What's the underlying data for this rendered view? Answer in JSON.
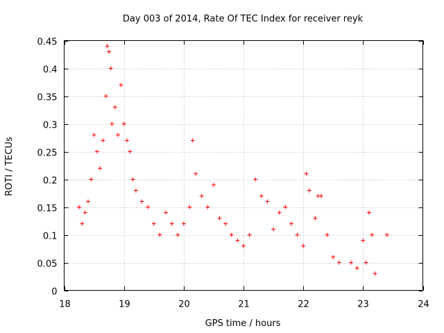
{
  "chart_data": {
    "type": "scatter",
    "title": "Day 003 of 2014, Rate Of TEC Index for receiver reyk",
    "xlabel": "GPS time / hours",
    "ylabel": "ROTI / TECUs",
    "xlim": [
      18,
      24
    ],
    "ylim": [
      0,
      0.45
    ],
    "xticks": [
      18,
      19,
      20,
      21,
      22,
      23,
      24
    ],
    "yticks": [
      0,
      0.05,
      0.1,
      0.15,
      0.2,
      0.25,
      0.3,
      0.35,
      0.4,
      0.45
    ],
    "grid": true,
    "marker": "+",
    "series": [
      {
        "name": "reyk",
        "color": "#ff0000",
        "x": [
          18.25,
          18.3,
          18.35,
          18.4,
          18.45,
          18.5,
          18.55,
          18.6,
          18.65,
          18.7,
          18.72,
          18.75,
          18.78,
          18.8,
          18.85,
          18.9,
          18.95,
          19.0,
          19.05,
          19.1,
          19.15,
          19.2,
          19.3,
          19.4,
          19.5,
          19.6,
          19.7,
          19.8,
          19.9,
          20.0,
          20.1,
          20.15,
          20.2,
          20.3,
          20.4,
          20.5,
          20.6,
          20.7,
          20.8,
          20.9,
          21.0,
          21.1,
          21.2,
          21.3,
          21.4,
          21.5,
          21.6,
          21.7,
          21.8,
          21.9,
          22.0,
          22.05,
          22.1,
          22.2,
          22.25,
          22.3,
          22.4,
          22.5,
          22.6,
          22.8,
          22.9,
          23.0,
          23.05,
          23.1,
          23.15,
          23.2,
          23.4
        ],
        "y": [
          0.15,
          0.12,
          0.14,
          0.16,
          0.2,
          0.28,
          0.25,
          0.22,
          0.27,
          0.35,
          0.44,
          0.43,
          0.4,
          0.3,
          0.33,
          0.28,
          0.37,
          0.3,
          0.27,
          0.25,
          0.2,
          0.18,
          0.16,
          0.15,
          0.12,
          0.1,
          0.14,
          0.12,
          0.1,
          0.12,
          0.15,
          0.27,
          0.21,
          0.17,
          0.15,
          0.19,
          0.13,
          0.12,
          0.1,
          0.09,
          0.08,
          0.1,
          0.2,
          0.17,
          0.16,
          0.11,
          0.14,
          0.15,
          0.12,
          0.1,
          0.08,
          0.21,
          0.18,
          0.13,
          0.17,
          0.17,
          0.1,
          0.06,
          0.05,
          0.05,
          0.04,
          0.09,
          0.05,
          0.14,
          0.1,
          0.03,
          0.1
        ]
      }
    ]
  }
}
